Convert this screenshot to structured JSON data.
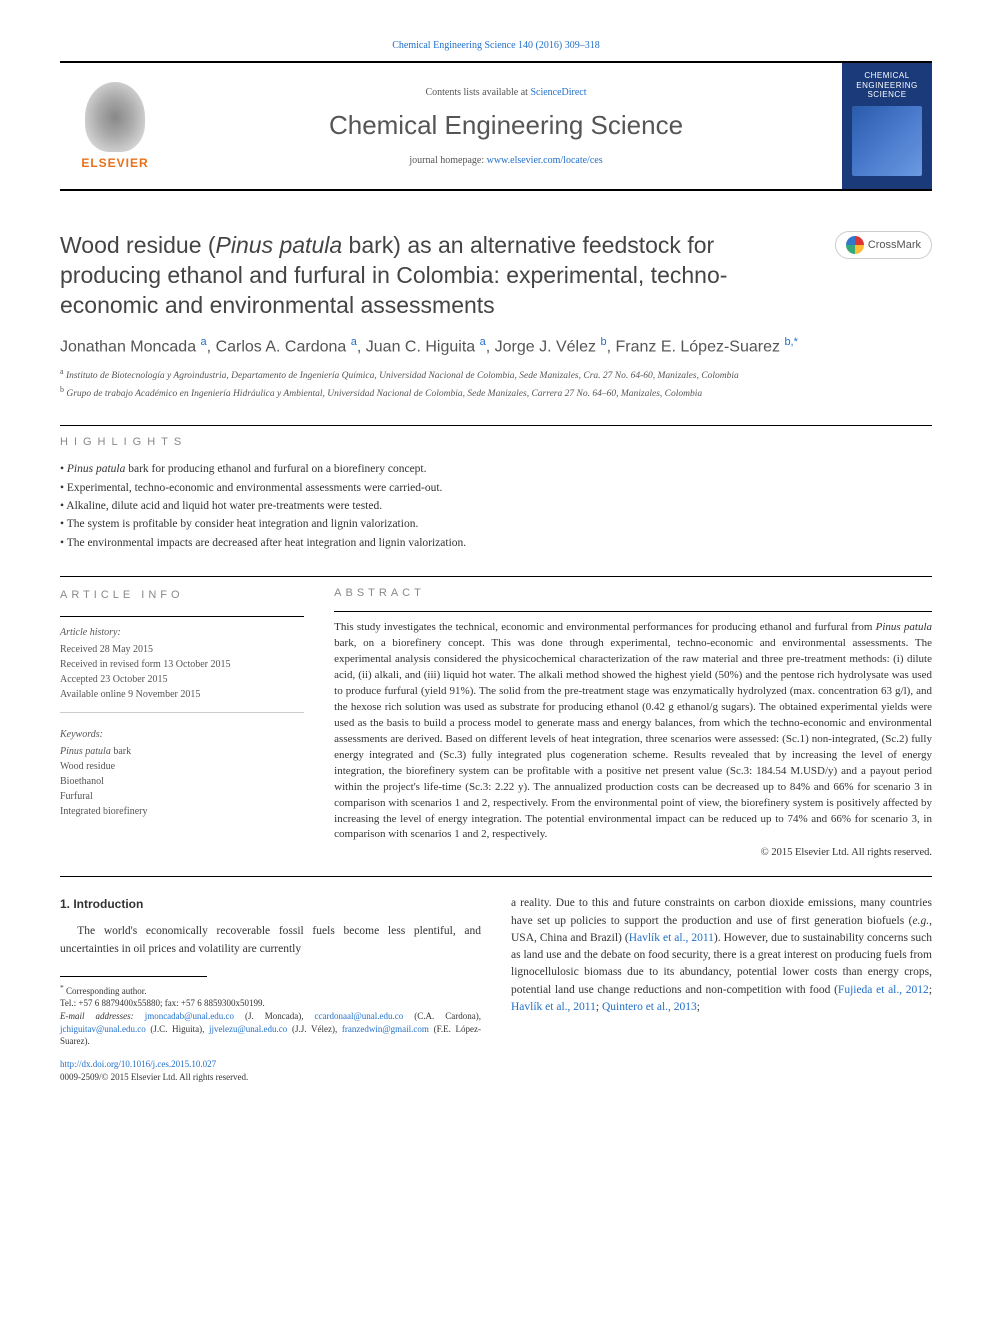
{
  "top_citation": "Chemical Engineering Science 140 (2016) 309–318",
  "header": {
    "contents_prefix": "Contents lists available at ",
    "contents_link": "ScienceDirect",
    "journal_title": "Chemical Engineering Science",
    "homepage_prefix": "journal homepage: ",
    "homepage_link": "www.elsevier.com/locate/ces",
    "publisher": "ELSEVIER",
    "cover_title": "CHEMICAL ENGINEERING SCIENCE"
  },
  "crossmark": "CrossMark",
  "title_parts": {
    "pre": "Wood residue (",
    "species": "Pinus patula",
    "post": " bark) as an alternative feedstock for producing ethanol and furfural in Colombia: experimental, techno-economic and environmental assessments"
  },
  "authors_html": "Jonathan Moncada <span class='sup'>a</span>, Carlos A. Cardona <span class='sup'>a</span>, Juan C. Higuita <span class='sup'>a</span>, Jorge J. Vélez <span class='sup'>b</span>, Franz E. López-Suarez <span class='sup'>b,*</span>",
  "affiliations": [
    "Instituto de Biotecnología y Agroindustria, Departamento de Ingeniería Química, Universidad Nacional de Colombia, Sede Manizales, Cra. 27 No. 64-60, Manizales, Colombia",
    "Grupo de trabajo Académico en Ingeniería Hidráulica y Ambiental, Universidad Nacional de Colombia, Sede Manizales, Carrera 27 No. 64–60, Manizales, Colombia"
  ],
  "aff_markers": [
    "a",
    "b"
  ],
  "highlights_label": "HIGHLIGHTS",
  "highlights": [
    "<span class='species'>Pinus patula</span> bark for producing ethanol and furfural on a biorefinery concept.",
    "Experimental, techno-economic and environmental assessments were carried-out.",
    "Alkaline, dilute acid and liquid hot water pre-treatments were tested.",
    "The system is profitable by consider heat integration and lignin valorization.",
    "The environmental impacts are decreased after heat integration and lignin valorization."
  ],
  "article_info_label": "ARTICLE INFO",
  "abstract_label": "ABSTRACT",
  "history": {
    "head": "Article history:",
    "items": [
      "Received 28 May 2015",
      "Received in revised form 13 October 2015",
      "Accepted 23 October 2015",
      "Available online 9 November 2015"
    ]
  },
  "keywords_head": "Keywords:",
  "keywords": [
    "<span class='species'>Pinus patula</span> bark",
    "Wood residue",
    "Bioethanol",
    "Furfural",
    "Integrated biorefinery"
  ],
  "abstract_html": "This study investigates the technical, economic and environmental performances for producing ethanol and furfural from <span class='species'>Pinus patula</span> bark, on a biorefinery concept. This was done through experimental, techno-economic and environmental assessments. The experimental analysis considered the physicochemical characterization of the raw material and three pre-treatment methods: (i) dilute acid, (ii) alkali, and (iii) liquid hot water. The alkali method showed the highest yield (50%) and the pentose rich hydrolysate was used to produce furfural (yield 91%). The solid from the pre-treatment stage was enzymatically hydrolyzed (max. concentration 63 g/l), and the hexose rich solution was used as substrate for producing ethanol (0.42 g ethanol/g sugars). The obtained experimental yields were used as the basis to build a process model to generate mass and energy balances, from which the techno-economic and environmental assessments are derived. Based on different levels of heat integration, three scenarios were assessed: (Sc.1) non-integrated, (Sc.2) fully energy integrated and (Sc.3) fully integrated plus cogeneration scheme. Results revealed that by increasing the level of energy integration, the biorefinery system can be profitable with a positive net present value (Sc.3: 184.54 M.USD/y) and a payout period within the project's life-time (Sc.3: 2.22 y). The annualized production costs can be decreased up to 84% and 66% for scenario 3 in comparison with scenarios 1 and 2, respectively. From the environmental point of view, the biorefinery system is positively affected by increasing the level of energy integration. The potential environmental impact can be reduced up to 74% and 66% for scenario 3, in comparison with scenarios 1 and 2, respectively.",
  "copyright": "© 2015 Elsevier Ltd. All rights reserved.",
  "intro_heading": "1. Introduction",
  "intro_left": "The world's economically recoverable fossil fuels become less plentiful, and uncertainties in oil prices and volatility are currently",
  "intro_right_html": "a reality. Due to this and future constraints on carbon dioxide emissions, many countries have set up policies to support the production and use of first generation biofuels (<span class='species'>e.g.</span>, USA, China and Brazil) (<a>Havlík et al., 2011</a>). However, due to sustainability concerns such as land use and the debate on food security, there is a great interest on producing fuels from lignocellulosic biomass due to its abundancy, potential lower costs than energy crops, potential land use change reductions and non-competition with food (<a>Fujieda et al., 2012</a>; <a>Havlík et al., 2011</a>; <a>Quintero et al., 2013</a>;",
  "footnotes": {
    "corresponding": "Corresponding author.",
    "tel": "Tel.: +57 6 8879400x55880; fax: +57 6 8859300x50199.",
    "email_label": "E-mail addresses:",
    "emails_html": "<a>jmoncadab@unal.edu.co</a> (J. Moncada), <a>ccardonaal@unal.edu.co</a> (C.A. Cardona), <a>jchiguitav@unal.edu.co</a> (J.C. Higuita), <a>jjvelezu@unal.edu.co</a> (J.J. Vélez), <a>franzedwin@gmail.com</a> (F.E. López-Suarez)."
  },
  "doi": "http://dx.doi.org/10.1016/j.ces.2015.10.027",
  "issn_line": "0009-2509/© 2015 Elsevier Ltd. All rights reserved."
}
